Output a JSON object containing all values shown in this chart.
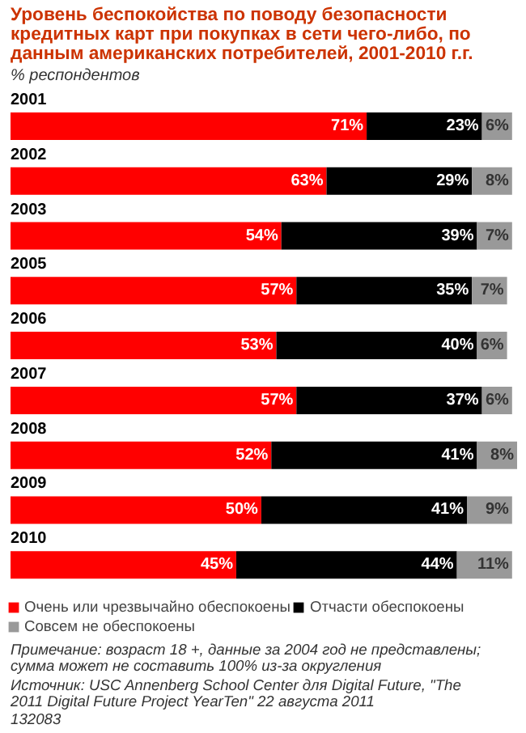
{
  "chart_data": {
    "type": "bar",
    "orientation": "horizontal",
    "stacked": true,
    "title": "Уровень беспокойства по поводу безопасности кредитных карт при покупках в сети чего-либо, по данным американских потребителей, 2001-2010 г.г.",
    "subtitle": "% респондентов",
    "categories": [
      "2001",
      "2002",
      "2003",
      "2005",
      "2006",
      "2007",
      "2008",
      "2009",
      "2010"
    ],
    "series": [
      {
        "name": "Очень или чрезвычайно обеспокоены",
        "color": "#ff0000",
        "values": [
          71,
          63,
          54,
          57,
          53,
          57,
          52,
          50,
          45
        ],
        "value_labels": [
          "71%",
          "63%",
          "54%",
          "57%",
          "53%",
          "57%",
          "52%",
          "50%",
          "45%"
        ]
      },
      {
        "name": "Отчасти обеспокоены",
        "color": "#000000",
        "values": [
          23,
          29,
          39,
          35,
          40,
          37,
          41,
          41,
          44
        ],
        "value_labels": [
          "23%",
          "29%",
          "39%",
          "35%",
          "40%",
          "37%",
          "41%",
          "41%",
          "44%"
        ]
      },
      {
        "name": "Совсем не обеспокоены",
        "color": "#999999",
        "values": [
          6,
          8,
          7,
          7,
          6,
          6,
          8,
          9,
          11
        ],
        "value_labels": [
          "6%",
          "8%",
          "7%",
          "7%",
          "6%",
          "6%",
          "8%",
          "9%",
          "11%"
        ]
      }
    ],
    "legend": "bottom",
    "annotations": [
      "Примечание: возраст 18 +, данные за 2004 год не представлены; сумма может не составить 100% из-за округления",
      "Источник: USC Annenberg School Center для Digital Future, \"The 2011 Digital Future Project YearTen\" 22 августа 2011",
      "132083"
    ]
  }
}
